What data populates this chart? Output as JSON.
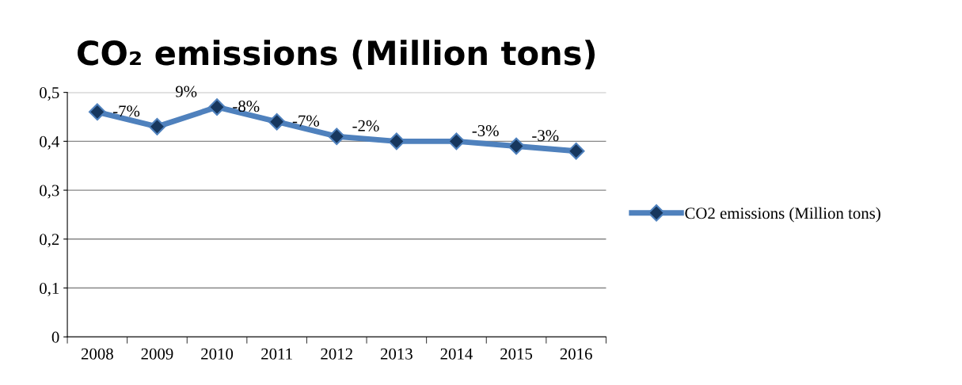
{
  "chart_data": {
    "type": "line",
    "title": "CO₂ emissions (Million tons)",
    "categories": [
      "2008",
      "2009",
      "2010",
      "2011",
      "2012",
      "2013",
      "2014",
      "2015",
      "2016"
    ],
    "series": [
      {
        "name": "CO2 emissions (Million tons)",
        "color": "#4f81bd",
        "values": [
          0.46,
          0.43,
          0.47,
          0.44,
          0.41,
          0.4,
          0.4,
          0.39,
          0.38
        ]
      }
    ],
    "annotations": [
      {
        "text": "-7%",
        "x": "2009",
        "y": 0.43
      },
      {
        "text": "9%",
        "x": "2010",
        "y": 0.47
      },
      {
        "text": "-8%",
        "x": "2011",
        "y": 0.44
      },
      {
        "text": "-7%",
        "x": "2012",
        "y": 0.41
      },
      {
        "text": "-2%",
        "x": "2013",
        "y": 0.4
      },
      {
        "text": "-3%",
        "x": "2015",
        "y": 0.39
      },
      {
        "text": "-3%",
        "x": "2016",
        "y": 0.38
      }
    ],
    "ylim": [
      0,
      0.5
    ],
    "yticks": [
      0,
      {
        "value": 0.1,
        "label": "0,1"
      },
      {
        "value": 0.2,
        "label": "0,2"
      },
      {
        "value": 0.3,
        "label": "0,3"
      },
      {
        "value": 0.4,
        "label": "0,4"
      },
      {
        "value": 0.5,
        "label": "0,5"
      }
    ],
    "grid": "y",
    "legend": "right",
    "marker": "diamond",
    "line_style": "solid"
  }
}
